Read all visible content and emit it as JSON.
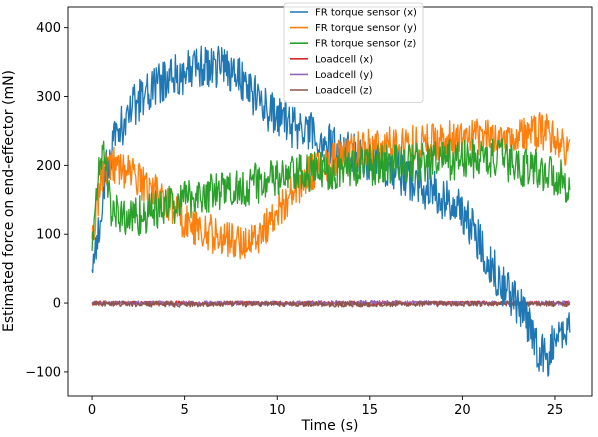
{
  "chart_data": {
    "type": "line",
    "xlabel": "Time (s)",
    "ylabel": "Estimated force on end-effector (mN)",
    "xlim": [
      -1.3,
      27.0
    ],
    "ylim": [
      -135,
      430
    ],
    "xticks": [
      0,
      5,
      10,
      15,
      20,
      25
    ],
    "yticks": [
      -100,
      0,
      100,
      200,
      300,
      400
    ],
    "grid": false,
    "legend_position": "top-center",
    "series": [
      {
        "name": "FR torque sensor (x)",
        "color": "#1f77b4",
        "x": [
          0,
          0.3,
          0.6,
          1,
          1.5,
          2,
          2.5,
          3,
          3.5,
          4,
          4.5,
          5,
          5.5,
          6,
          6.5,
          7,
          7.5,
          8,
          8.5,
          9,
          9.5,
          10,
          10.5,
          11,
          11.5,
          12,
          12.5,
          13,
          13.5,
          14,
          14.5,
          15,
          15.5,
          16,
          16.5,
          17,
          17.5,
          18,
          18.5,
          19,
          19.5,
          20,
          20.5,
          21,
          21.5,
          22,
          22.5,
          23,
          23.5,
          24,
          24.5,
          25,
          25.5,
          25.8
        ],
        "values": [
          45,
          90,
          170,
          220,
          255,
          275,
          295,
          305,
          315,
          325,
          330,
          335,
          338,
          342,
          345,
          345,
          340,
          330,
          310,
          295,
          280,
          270,
          262,
          255,
          250,
          242,
          235,
          228,
          222,
          218,
          214,
          210,
          205,
          200,
          192,
          182,
          175,
          168,
          160,
          150,
          142,
          135,
          110,
          85,
          60,
          35,
          15,
          0,
          -30,
          -60,
          -85,
          -55,
          -40,
          -35
        ],
        "noise": 32
      },
      {
        "name": "FR torque sensor (y)",
        "color": "#ff7f0e",
        "x": [
          0,
          0.3,
          0.6,
          1,
          1.5,
          2,
          2.5,
          3,
          3.5,
          4,
          4.5,
          5,
          5.5,
          6,
          6.5,
          7,
          7.5,
          8,
          8.5,
          9,
          9.5,
          10,
          10.5,
          11,
          11.5,
          12,
          12.5,
          13,
          13.5,
          14,
          14.5,
          15,
          15.5,
          16,
          16.5,
          17,
          17.5,
          18,
          18.5,
          19,
          19.5,
          20,
          20.5,
          21,
          21.5,
          22,
          22.5,
          23,
          23.5,
          24,
          24.5,
          25,
          25.5,
          25.8
        ],
        "values": [
          95,
          150,
          195,
          205,
          195,
          190,
          180,
          170,
          160,
          148,
          135,
          120,
          110,
          105,
          100,
          95,
          90,
          88,
          90,
          100,
          115,
          135,
          150,
          165,
          180,
          192,
          200,
          208,
          212,
          218,
          222,
          225,
          228,
          230,
          230,
          232,
          232,
          234,
          235,
          236,
          237,
          238,
          238,
          240,
          240,
          242,
          243,
          245,
          245,
          248,
          250,
          240,
          225,
          215
        ],
        "noise": 28
      },
      {
        "name": "FR torque sensor (z)",
        "color": "#2ca02c",
        "x": [
          0,
          0.3,
          0.6,
          1,
          1.5,
          2,
          2.5,
          3,
          3.5,
          4,
          4.5,
          5,
          5.5,
          6,
          6.5,
          7,
          7.5,
          8,
          8.5,
          9,
          9.5,
          10,
          10.5,
          11,
          11.5,
          12,
          12.5,
          13,
          13.5,
          14,
          14.5,
          15,
          15.5,
          16,
          16.5,
          17,
          17.5,
          18,
          18.5,
          19,
          19.5,
          20,
          20.5,
          21,
          21.5,
          22,
          22.5,
          23,
          23.5,
          24,
          24.5,
          25,
          25.5,
          25.8
        ],
        "values": [
          85,
          180,
          230,
          140,
          125,
          125,
          128,
          130,
          135,
          140,
          145,
          150,
          155,
          158,
          160,
          162,
          165,
          168,
          172,
          175,
          178,
          180,
          183,
          185,
          188,
          190,
          192,
          194,
          196,
          198,
          200,
          200,
          202,
          202,
          203,
          204,
          205,
          205,
          206,
          207,
          208,
          208,
          209,
          210,
          210,
          210,
          205,
          200,
          198,
          195,
          190,
          185,
          178,
          172
        ],
        "noise": 30
      },
      {
        "name": "Loadcell (x)",
        "color": "#d62728",
        "x": [
          0,
          5,
          10,
          15,
          20,
          25,
          25.8
        ],
        "values": [
          0,
          0,
          0,
          0,
          0,
          0,
          0
        ],
        "noise": 3
      },
      {
        "name": "Loadcell (y)",
        "color": "#9467bd",
        "x": [
          0,
          5,
          10,
          15,
          20,
          25,
          25.8
        ],
        "values": [
          0,
          0,
          0,
          1,
          0,
          0,
          0
        ],
        "noise": 3
      },
      {
        "name": "Loadcell (z)",
        "color": "#8c564b",
        "x": [
          0,
          5,
          10,
          15,
          20,
          25,
          25.8
        ],
        "values": [
          -1,
          -2,
          -1,
          -2,
          -1,
          -1,
          -1
        ],
        "noise": 4
      }
    ]
  }
}
